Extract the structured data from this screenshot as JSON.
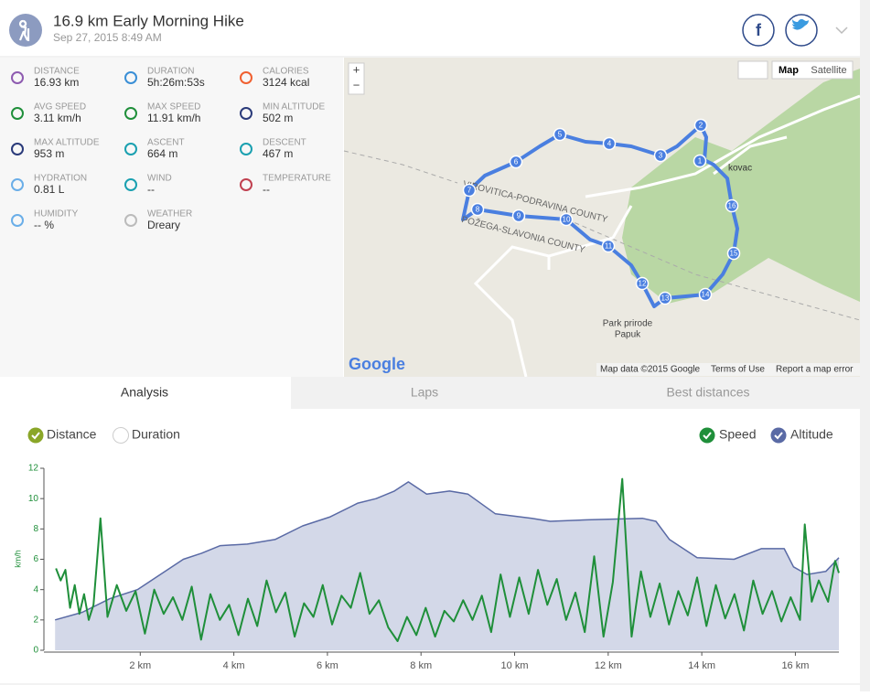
{
  "header": {
    "title": "16.9 km Early Morning Hike",
    "date": "Sep 27, 2015 8:49 AM"
  },
  "stats": [
    {
      "label": "DISTANCE",
      "value": "16.93 km"
    },
    {
      "label": "DURATION",
      "value": "5h:26m:53s"
    },
    {
      "label": "CALORIES",
      "value": "3124 kcal"
    },
    {
      "label": "AVG SPEED",
      "value": "3.11 km/h"
    },
    {
      "label": "MAX SPEED",
      "value": "11.91 km/h"
    },
    {
      "label": "MIN ALTITUDE",
      "value": "502 m"
    },
    {
      "label": "MAX ALTITUDE",
      "value": "953 m"
    },
    {
      "label": "ASCENT",
      "value": "664 m"
    },
    {
      "label": "DESCENT",
      "value": "467 m"
    },
    {
      "label": "HYDRATION",
      "value": "0.81 L"
    },
    {
      "label": "WIND",
      "value": "--"
    },
    {
      "label": "TEMPERATURE",
      "value": "--"
    },
    {
      "label": "HUMIDITY",
      "value": "-- %"
    },
    {
      "label": "WEATHER",
      "value": "Dreary"
    }
  ],
  "map": {
    "type_buttons": [
      "Map",
      "Satellite"
    ],
    "zoom": [
      "+",
      "−"
    ],
    "labels": [
      "VIROVITICA-PODRAVINA COUNTY",
      "POŽEGA-SLAVONIA COUNTY",
      "Park prirode",
      "Papuk",
      "kovac"
    ],
    "markers": [
      "1",
      "2",
      "3",
      "4",
      "5",
      "6",
      "7",
      "8",
      "9",
      "10",
      "11",
      "12",
      "13",
      "14",
      "15",
      "16"
    ],
    "logo": "Google",
    "footer": [
      "Map data ©2015 Google",
      "Terms of Use",
      "Report a map error"
    ]
  },
  "tabs": [
    "Analysis",
    "Laps",
    "Best distances"
  ],
  "x_toggle": [
    "Distance",
    "Duration"
  ],
  "chart_data": {
    "type": "line",
    "y_label": "km/h",
    "xlim": [
      0,
      16.93
    ],
    "ylim": [
      0,
      12
    ],
    "xticks": [
      {
        "value": 2,
        "label": "2 km"
      },
      {
        "value": 4,
        "label": "4 km"
      },
      {
        "value": 6,
        "label": "6 km"
      },
      {
        "value": 8,
        "label": "8 km"
      },
      {
        "value": 10,
        "label": "10 km"
      },
      {
        "value": 12,
        "label": "12 km"
      },
      {
        "value": 14,
        "label": "14 km"
      },
      {
        "value": 16,
        "label": "16 km"
      }
    ],
    "yticks": [
      0,
      2,
      4,
      6,
      8,
      10,
      12
    ],
    "series": [
      {
        "name": "Altitude",
        "color": "#5a6aa5",
        "fill": "#d3d8e8",
        "area": true,
        "x": [
          0.18,
          0.76,
          1.35,
          1.94,
          2.53,
          2.92,
          3.31,
          3.71,
          4.29,
          4.88,
          5.47,
          6.06,
          6.65,
          7.04,
          7.43,
          7.73,
          8.12,
          8.61,
          9.0,
          9.59,
          10.37,
          10.76,
          11.55,
          12.73,
          13.02,
          13.31,
          13.9,
          14.69,
          15.27,
          15.76,
          15.96,
          16.25,
          16.65,
          16.93
        ],
        "values": [
          2.0,
          2.5,
          3.4,
          4.0,
          5.2,
          6.0,
          6.4,
          6.9,
          7.0,
          7.3,
          8.2,
          8.8,
          9.7,
          10.0,
          10.5,
          11.1,
          10.3,
          10.5,
          10.3,
          9.0,
          8.7,
          8.5,
          8.6,
          8.7,
          8.5,
          7.3,
          6.1,
          6.0,
          6.7,
          6.7,
          5.5,
          5.0,
          5.2,
          6.1
        ]
      },
      {
        "name": "Speed",
        "color": "#1f8f3a",
        "x": [
          0.2,
          0.3,
          0.4,
          0.5,
          0.6,
          0.7,
          0.8,
          0.9,
          1.0,
          1.15,
          1.3,
          1.5,
          1.7,
          1.9,
          2.1,
          2.3,
          2.5,
          2.7,
          2.9,
          3.1,
          3.3,
          3.5,
          3.7,
          3.9,
          4.1,
          4.3,
          4.5,
          4.7,
          4.9,
          5.1,
          5.3,
          5.5,
          5.7,
          5.9,
          6.1,
          6.3,
          6.5,
          6.7,
          6.9,
          7.1,
          7.3,
          7.5,
          7.7,
          7.9,
          8.1,
          8.3,
          8.5,
          8.7,
          8.9,
          9.1,
          9.3,
          9.5,
          9.7,
          9.9,
          10.1,
          10.3,
          10.5,
          10.7,
          10.9,
          11.1,
          11.3,
          11.5,
          11.7,
          11.9,
          12.1,
          12.3,
          12.5,
          12.7,
          12.9,
          13.1,
          13.3,
          13.5,
          13.7,
          13.9,
          14.1,
          14.3,
          14.5,
          14.7,
          14.9,
          15.1,
          15.3,
          15.5,
          15.7,
          15.9,
          16.1,
          16.2,
          16.35,
          16.5,
          16.7,
          16.85,
          16.93
        ],
        "values": [
          5.4,
          4.6,
          5.3,
          2.8,
          4.3,
          2.4,
          3.7,
          2.0,
          3.0,
          8.7,
          2.2,
          4.3,
          2.6,
          3.9,
          1.1,
          4.0,
          2.4,
          3.5,
          2.0,
          4.2,
          0.7,
          3.7,
          2.0,
          3.0,
          1.0,
          3.4,
          1.6,
          4.6,
          2.5,
          3.8,
          0.9,
          3.1,
          2.2,
          4.3,
          1.7,
          3.6,
          2.8,
          5.1,
          2.4,
          3.3,
          1.5,
          0.6,
          2.2,
          1.0,
          2.8,
          0.9,
          2.6,
          1.9,
          3.3,
          2.0,
          3.6,
          1.2,
          5.0,
          2.2,
          4.8,
          2.4,
          5.3,
          3.0,
          4.7,
          2.0,
          3.8,
          1.2,
          6.2,
          0.9,
          4.5,
          11.3,
          0.9,
          5.2,
          2.2,
          4.4,
          1.7,
          3.9,
          2.3,
          4.8,
          1.6,
          4.3,
          2.1,
          3.7,
          1.3,
          4.6,
          2.4,
          3.9,
          1.9,
          3.5,
          2.0,
          8.3,
          3.2,
          4.6,
          3.2,
          5.9,
          5.1
        ]
      }
    ]
  }
}
